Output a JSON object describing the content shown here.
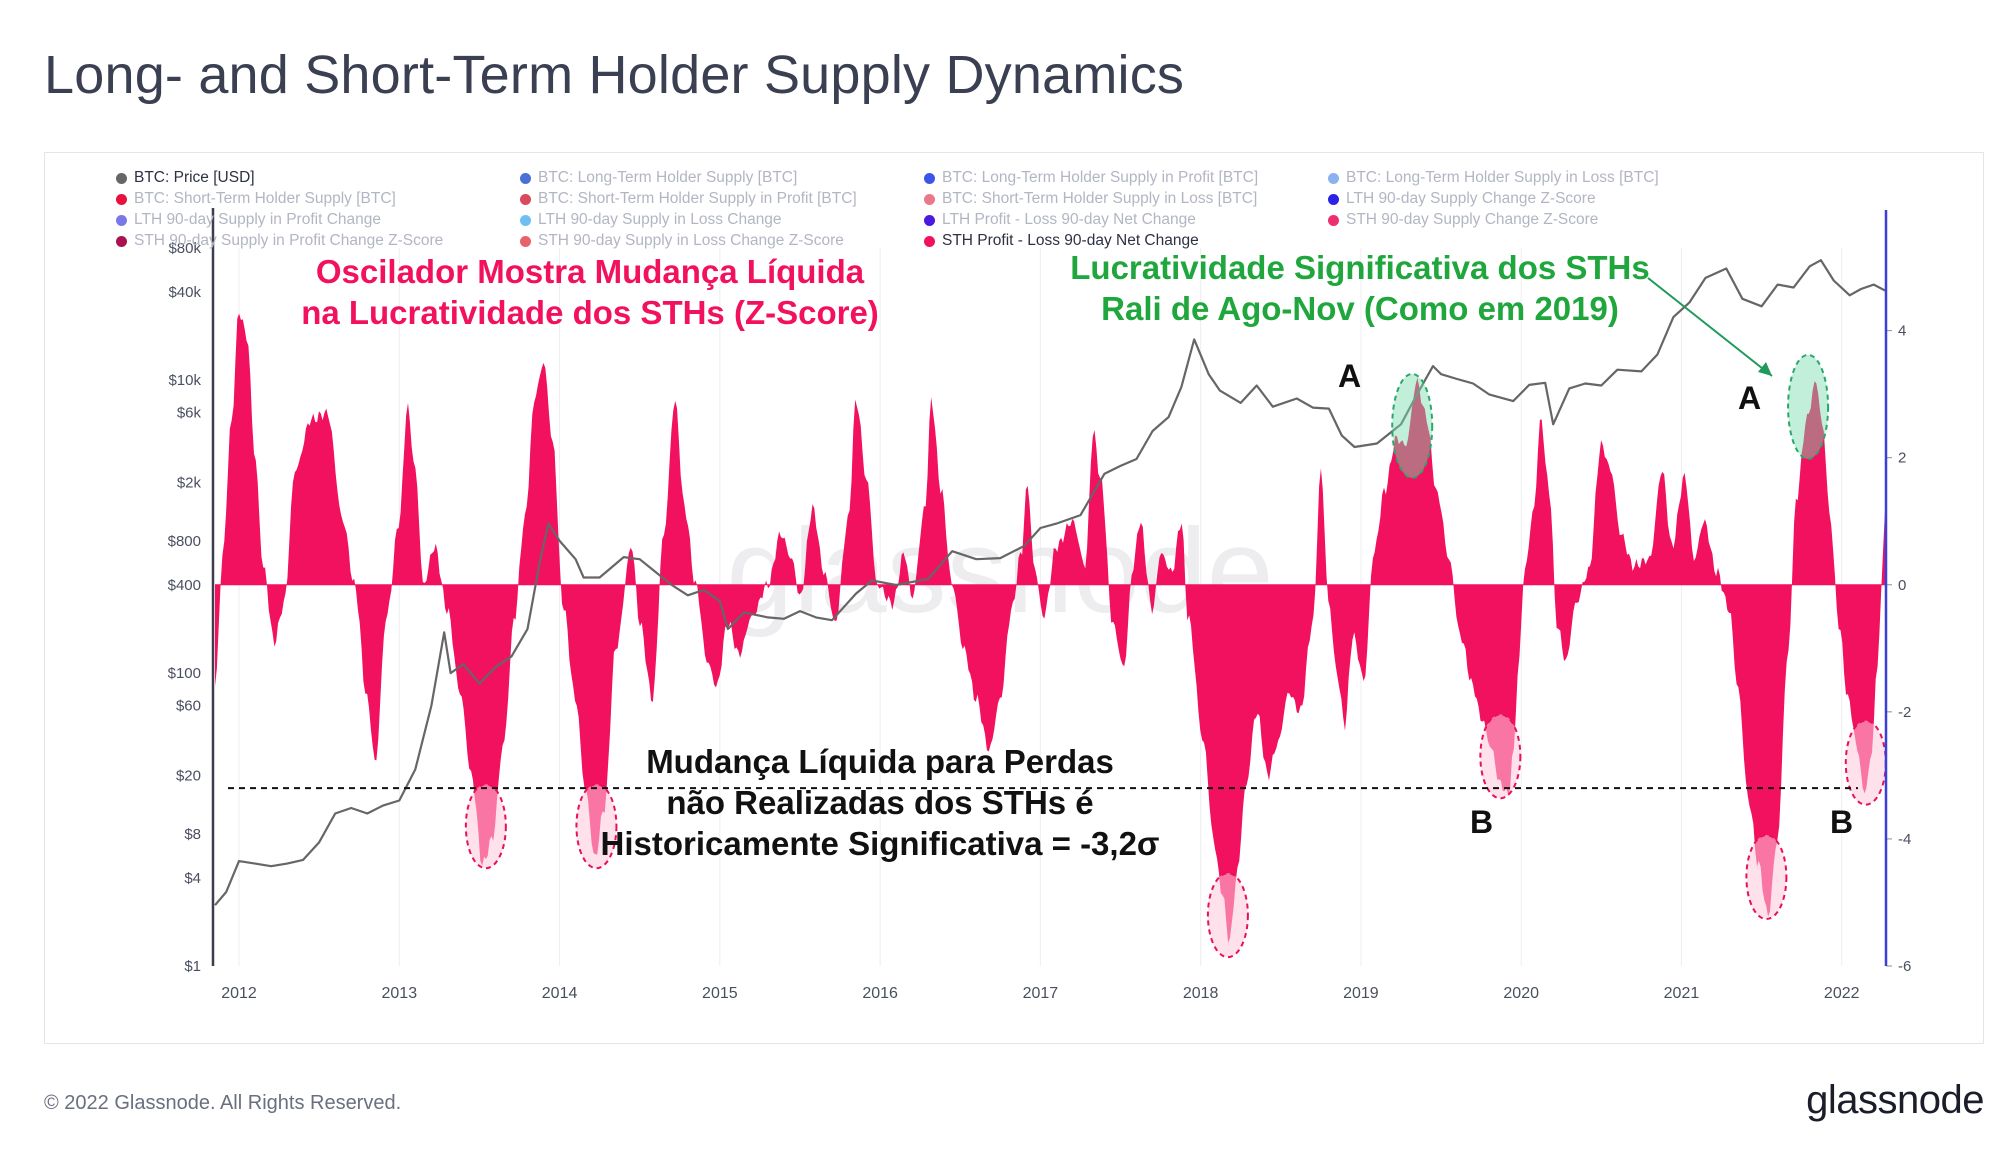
{
  "page": {
    "title": "Long- and Short-Term Holder Supply Dynamics",
    "footer": "© 2022 Glassnode. All Rights Reserved.",
    "brand": "glassnode",
    "watermark": "glassnode"
  },
  "legend": [
    {
      "label": "BTC: Price [USD]",
      "color": "#666666",
      "active": true
    },
    {
      "label": "BTC: Long-Term Holder Supply [BTC]",
      "color": "#4b6fd8",
      "active": false
    },
    {
      "label": "BTC: Long-Term Holder Supply in Profit [BTC]",
      "color": "#3b55e8",
      "active": false
    },
    {
      "label": "BTC: Long-Term Holder Supply in Loss [BTC]",
      "color": "#8db0f0",
      "active": false
    },
    {
      "label": "BTC: Short-Term Holder Supply [BTC]",
      "color": "#e8103e",
      "active": false
    },
    {
      "label": "BTC: Short-Term Holder Supply in Profit [BTC]",
      "color": "#d84a5c",
      "active": false
    },
    {
      "label": "BTC: Short-Term Holder Supply in Loss [BTC]",
      "color": "#e8788a",
      "active": false
    },
    {
      "label": "LTH 90-day Supply Change Z-Score",
      "color": "#2a22e8",
      "active": false
    },
    {
      "label": "LTH 90-day Supply in Profit Change",
      "color": "#7a78e8",
      "active": false
    },
    {
      "label": "LTH 90-day Supply in Loss Change",
      "color": "#6ec0f2",
      "active": false
    },
    {
      "label": "LTH Profit - Loss 90-day Net Change",
      "color": "#4a1ae0",
      "active": false
    },
    {
      "label": "STH 90-day Supply Change Z-Score",
      "color": "#ec2f6e",
      "active": false
    },
    {
      "label": "STH 90-day Supply in Profit Change Z-Score",
      "color": "#a8124e",
      "active": false
    },
    {
      "label": "STH 90-day Supply in Loss Change Z-Score",
      "color": "#e8646a",
      "active": false
    },
    {
      "label": "STH Profit - Loss 90-day Net Change",
      "color": "#f2115e",
      "active": true
    }
  ],
  "annotations": {
    "left_line1": "Oscilador Mostra Mudança Líquida",
    "left_line2": "na Lucratividade dos STHs (Z-Score)",
    "right_line1": "Lucratividade Significativa dos STHs",
    "right_line2": "Rali de Ago-Nov (Como em 2019)",
    "bottom_line1": "Mudança Líquida para Perdas",
    "bottom_line2": "não Realizadas dos STHs é",
    "bottom_line3": "Historicamente Significativa = -3,2σ",
    "marker_a": "A",
    "marker_b": "B"
  },
  "chart_data": {
    "type": "area",
    "title": "Long- and Short-Term Holder Supply Dynamics",
    "x_range": [
      2011.85,
      2022.27
    ],
    "x_ticks": [
      "2012",
      "2013",
      "2014",
      "2015",
      "2016",
      "2017",
      "2018",
      "2019",
      "2020",
      "2021",
      "2022"
    ],
    "y_left": {
      "label": "BTC: Price [USD]",
      "scale": "log",
      "range": [
        1,
        80000
      ],
      "ticks": [
        "$1",
        "$4",
        "$8",
        "$20",
        "$60",
        "$100",
        "$400",
        "$800",
        "$2k",
        "$6k",
        "$10k",
        "$40k",
        "$80k"
      ],
      "tick_values": [
        1,
        4,
        8,
        20,
        60,
        100,
        400,
        800,
        2000,
        6000,
        10000,
        40000,
        80000
      ]
    },
    "y_right": {
      "label": "STH Profit - Loss 90-day Net Change (Z-Score)",
      "range": [
        -6,
        5.3
      ],
      "ticks": [
        "-6",
        "-4",
        "-2",
        "0",
        "2",
        "4"
      ],
      "tick_values": [
        -6,
        -4,
        -2,
        0,
        2,
        4
      ]
    },
    "threshold": -3.2,
    "price_series": {
      "name": "BTC: Price [USD]",
      "color": "#666666",
      "points": [
        [
          2011.85,
          2.6
        ],
        [
          2011.92,
          3.2
        ],
        [
          2012.0,
          5.2
        ],
        [
          2012.1,
          5.0
        ],
        [
          2012.2,
          4.8
        ],
        [
          2012.3,
          5.0
        ],
        [
          2012.4,
          5.3
        ],
        [
          2012.5,
          7.0
        ],
        [
          2012.6,
          11.0
        ],
        [
          2012.7,
          12.0
        ],
        [
          2012.8,
          11.0
        ],
        [
          2012.9,
          12.5
        ],
        [
          2013.0,
          13.5
        ],
        [
          2013.1,
          22
        ],
        [
          2013.2,
          60
        ],
        [
          2013.28,
          190
        ],
        [
          2013.32,
          100
        ],
        [
          2013.4,
          115
        ],
        [
          2013.5,
          85
        ],
        [
          2013.6,
          110
        ],
        [
          2013.7,
          130
        ],
        [
          2013.8,
          200
        ],
        [
          2013.88,
          600
        ],
        [
          2013.93,
          1050
        ],
        [
          2014.0,
          800
        ],
        [
          2014.1,
          600
        ],
        [
          2014.15,
          450
        ],
        [
          2014.25,
          450
        ],
        [
          2014.4,
          620
        ],
        [
          2014.5,
          600
        ],
        [
          2014.6,
          490
        ],
        [
          2014.7,
          400
        ],
        [
          2014.8,
          340
        ],
        [
          2014.9,
          370
        ],
        [
          2015.0,
          310
        ],
        [
          2015.05,
          200
        ],
        [
          2015.15,
          260
        ],
        [
          2015.3,
          240
        ],
        [
          2015.4,
          235
        ],
        [
          2015.5,
          265
        ],
        [
          2015.6,
          240
        ],
        [
          2015.7,
          230
        ],
        [
          2015.85,
          350
        ],
        [
          2015.95,
          430
        ],
        [
          2016.1,
          400
        ],
        [
          2016.3,
          440
        ],
        [
          2016.45,
          680
        ],
        [
          2016.6,
          600
        ],
        [
          2016.75,
          610
        ],
        [
          2016.9,
          740
        ],
        [
          2017.0,
          980
        ],
        [
          2017.1,
          1050
        ],
        [
          2017.25,
          1200
        ],
        [
          2017.4,
          2300
        ],
        [
          2017.5,
          2600
        ],
        [
          2017.6,
          2900
        ],
        [
          2017.7,
          4500
        ],
        [
          2017.8,
          5600
        ],
        [
          2017.88,
          9000
        ],
        [
          2017.96,
          19000
        ],
        [
          2018.05,
          11000
        ],
        [
          2018.12,
          8500
        ],
        [
          2018.25,
          7000
        ],
        [
          2018.35,
          9200
        ],
        [
          2018.45,
          6600
        ],
        [
          2018.6,
          7500
        ],
        [
          2018.7,
          6500
        ],
        [
          2018.8,
          6400
        ],
        [
          2018.88,
          4200
        ],
        [
          2018.96,
          3500
        ],
        [
          2019.1,
          3700
        ],
        [
          2019.25,
          5000
        ],
        [
          2019.35,
          8000
        ],
        [
          2019.45,
          12500
        ],
        [
          2019.5,
          11000
        ],
        [
          2019.6,
          10200
        ],
        [
          2019.7,
          9500
        ],
        [
          2019.8,
          8000
        ],
        [
          2019.95,
          7200
        ],
        [
          2020.05,
          9300
        ],
        [
          2020.15,
          9600
        ],
        [
          2020.2,
          5000
        ],
        [
          2020.3,
          8800
        ],
        [
          2020.4,
          9500
        ],
        [
          2020.5,
          9200
        ],
        [
          2020.6,
          11800
        ],
        [
          2020.75,
          11500
        ],
        [
          2020.85,
          15000
        ],
        [
          2020.95,
          27000
        ],
        [
          2021.05,
          34000
        ],
        [
          2021.15,
          50000
        ],
        [
          2021.28,
          58000
        ],
        [
          2021.38,
          36000
        ],
        [
          2021.5,
          32000
        ],
        [
          2021.6,
          45000
        ],
        [
          2021.7,
          43000
        ],
        [
          2021.8,
          60000
        ],
        [
          2021.87,
          66000
        ],
        [
          2021.95,
          48000
        ],
        [
          2022.05,
          38000
        ],
        [
          2022.12,
          42000
        ],
        [
          2022.2,
          45000
        ],
        [
          2022.27,
          41000
        ]
      ]
    },
    "oscillator_series": {
      "name": "STH Profit - Loss 90-day Net Change",
      "color": "#f2115e",
      "points": [
        [
          2011.85,
          -1.6
        ],
        [
          2011.9,
          0.5
        ],
        [
          2011.95,
          2.5
        ],
        [
          2012.0,
          4.3
        ],
        [
          2012.05,
          3.9
        ],
        [
          2012.1,
          2.0
        ],
        [
          2012.15,
          0.3
        ],
        [
          2012.22,
          -0.9
        ],
        [
          2012.28,
          -0.3
        ],
        [
          2012.35,
          1.8
        ],
        [
          2012.45,
          2.6
        ],
        [
          2012.55,
          2.7
        ],
        [
          2012.65,
          1.0
        ],
        [
          2012.72,
          0.0
        ],
        [
          2012.8,
          -1.8
        ],
        [
          2012.85,
          -2.8
        ],
        [
          2012.92,
          -0.5
        ],
        [
          2013.0,
          1.0
        ],
        [
          2013.05,
          2.8
        ],
        [
          2013.1,
          1.8
        ],
        [
          2013.15,
          0.0
        ],
        [
          2013.22,
          0.6
        ],
        [
          2013.3,
          -0.4
        ],
        [
          2013.38,
          -1.7
        ],
        [
          2013.45,
          -3.0
        ],
        [
          2013.52,
          -4.4
        ],
        [
          2013.58,
          -4.0
        ],
        [
          2013.65,
          -2.5
        ],
        [
          2013.72,
          -0.5
        ],
        [
          2013.78,
          1.0
        ],
        [
          2013.85,
          3.0
        ],
        [
          2013.9,
          3.5
        ],
        [
          2013.96,
          2.2
        ],
        [
          2014.02,
          -0.3
        ],
        [
          2014.1,
          -1.8
        ],
        [
          2014.16,
          -3.2
        ],
        [
          2014.22,
          -4.3
        ],
        [
          2014.28,
          -3.5
        ],
        [
          2014.35,
          -1.0
        ],
        [
          2014.45,
          0.6
        ],
        [
          2014.5,
          -0.6
        ],
        [
          2014.58,
          -1.8
        ],
        [
          2014.65,
          0.8
        ],
        [
          2014.72,
          2.9
        ],
        [
          2014.78,
          1.2
        ],
        [
          2014.85,
          0.0
        ],
        [
          2014.92,
          -1.2
        ],
        [
          2014.98,
          -1.6
        ],
        [
          2015.05,
          -0.6
        ],
        [
          2015.12,
          -1.1
        ],
        [
          2015.2,
          -0.5
        ],
        [
          2015.3,
          0.0
        ],
        [
          2015.38,
          0.8
        ],
        [
          2015.45,
          0.4
        ],
        [
          2015.5,
          -0.2
        ],
        [
          2015.58,
          1.2
        ],
        [
          2015.65,
          0.2
        ],
        [
          2015.72,
          -0.6
        ],
        [
          2015.8,
          1.0
        ],
        [
          2015.85,
          2.9
        ],
        [
          2015.92,
          1.6
        ],
        [
          2015.98,
          0.0
        ],
        [
          2016.08,
          -0.3
        ],
        [
          2016.15,
          0.5
        ],
        [
          2016.2,
          -0.2
        ],
        [
          2016.28,
          1.2
        ],
        [
          2016.32,
          2.9
        ],
        [
          2016.38,
          1.5
        ],
        [
          2016.45,
          0.0
        ],
        [
          2016.52,
          -1.0
        ],
        [
          2016.6,
          -1.8
        ],
        [
          2016.68,
          -2.6
        ],
        [
          2016.75,
          -1.8
        ],
        [
          2016.82,
          -0.4
        ],
        [
          2016.88,
          0.5
        ],
        [
          2016.92,
          1.6
        ],
        [
          2016.96,
          0.3
        ],
        [
          2017.02,
          -0.5
        ],
        [
          2017.1,
          0.6
        ],
        [
          2017.2,
          1.0
        ],
        [
          2017.28,
          0.3
        ],
        [
          2017.33,
          2.4
        ],
        [
          2017.38,
          1.6
        ],
        [
          2017.45,
          -0.6
        ],
        [
          2017.52,
          -1.3
        ],
        [
          2017.58,
          0.3
        ],
        [
          2017.62,
          1.0
        ],
        [
          2017.7,
          -0.4
        ],
        [
          2017.75,
          0.5
        ],
        [
          2017.82,
          0.2
        ],
        [
          2017.88,
          1.0
        ],
        [
          2017.92,
          -0.5
        ],
        [
          2018.02,
          -2.5
        ],
        [
          2018.08,
          -4.0
        ],
        [
          2018.13,
          -4.8
        ],
        [
          2018.18,
          -5.6
        ],
        [
          2018.23,
          -4.5
        ],
        [
          2018.28,
          -3.2
        ],
        [
          2018.35,
          -2.0
        ],
        [
          2018.42,
          -3.0
        ],
        [
          2018.48,
          -2.5
        ],
        [
          2018.55,
          -1.7
        ],
        [
          2018.62,
          -2.0
        ],
        [
          2018.7,
          -0.6
        ],
        [
          2018.75,
          1.8
        ],
        [
          2018.8,
          -0.3
        ],
        [
          2018.85,
          -1.4
        ],
        [
          2018.9,
          -2.2
        ],
        [
          2018.95,
          -0.8
        ],
        [
          2019.02,
          -1.5
        ],
        [
          2019.08,
          0.5
        ],
        [
          2019.15,
          1.5
        ],
        [
          2019.22,
          2.3
        ],
        [
          2019.28,
          2.2
        ],
        [
          2019.35,
          3.2
        ],
        [
          2019.4,
          2.7
        ],
        [
          2019.48,
          1.4
        ],
        [
          2019.55,
          0.4
        ],
        [
          2019.62,
          -0.8
        ],
        [
          2019.7,
          -1.6
        ],
        [
          2019.75,
          -2.1
        ],
        [
          2019.82,
          -2.6
        ],
        [
          2019.86,
          -3.1
        ],
        [
          2019.92,
          -3.3
        ],
        [
          2019.95,
          -2.7
        ],
        [
          2019.98,
          -1.4
        ],
        [
          2020.02,
          0.2
        ],
        [
          2020.08,
          1.2
        ],
        [
          2020.12,
          2.6
        ],
        [
          2020.18,
          1.4
        ],
        [
          2020.22,
          -0.6
        ],
        [
          2020.28,
          -1.2
        ],
        [
          2020.34,
          -0.3
        ],
        [
          2020.42,
          0.2
        ],
        [
          2020.5,
          2.2
        ],
        [
          2020.56,
          1.8
        ],
        [
          2020.62,
          0.8
        ],
        [
          2020.7,
          0.3
        ],
        [
          2020.8,
          0.4
        ],
        [
          2020.88,
          1.8
        ],
        [
          2020.94,
          0.6
        ],
        [
          2021.02,
          1.7
        ],
        [
          2021.08,
          0.4
        ],
        [
          2021.14,
          1.0
        ],
        [
          2021.22,
          0.2
        ],
        [
          2021.3,
          -0.4
        ],
        [
          2021.35,
          -1.6
        ],
        [
          2021.42,
          -3.4
        ],
        [
          2021.48,
          -4.4
        ],
        [
          2021.54,
          -5.2
        ],
        [
          2021.6,
          -4.0
        ],
        [
          2021.66,
          -1.2
        ],
        [
          2021.72,
          1.4
        ],
        [
          2021.78,
          2.6
        ],
        [
          2021.84,
          3.2
        ],
        [
          2021.88,
          2.5
        ],
        [
          2021.93,
          1.0
        ],
        [
          2021.98,
          -0.6
        ],
        [
          2022.04,
          -1.8
        ],
        [
          2022.1,
          -2.6
        ],
        [
          2022.14,
          -3.3
        ],
        [
          2022.18,
          -2.8
        ],
        [
          2022.22,
          -1.4
        ],
        [
          2022.25,
          0.0
        ],
        [
          2022.27,
          1.2
        ]
      ]
    },
    "highlights": [
      {
        "label": "A",
        "kind": "profit",
        "x": 2019.32,
        "y": 2.5
      },
      {
        "label": "A",
        "kind": "profit",
        "x": 2021.79,
        "y": 2.8
      },
      {
        "label": "",
        "kind": "loss",
        "x": 2013.54,
        "y": -3.8
      },
      {
        "label": "",
        "kind": "loss",
        "x": 2014.23,
        "y": -3.8
      },
      {
        "label": "",
        "kind": "loss",
        "x": 2018.17,
        "y": -5.2
      },
      {
        "label": "B",
        "kind": "loss",
        "x": 2019.87,
        "y": -2.7
      },
      {
        "label": "",
        "kind": "loss",
        "x": 2021.53,
        "y": -4.6
      },
      {
        "label": "B",
        "kind": "loss",
        "x": 2022.15,
        "y": -2.8
      }
    ]
  }
}
